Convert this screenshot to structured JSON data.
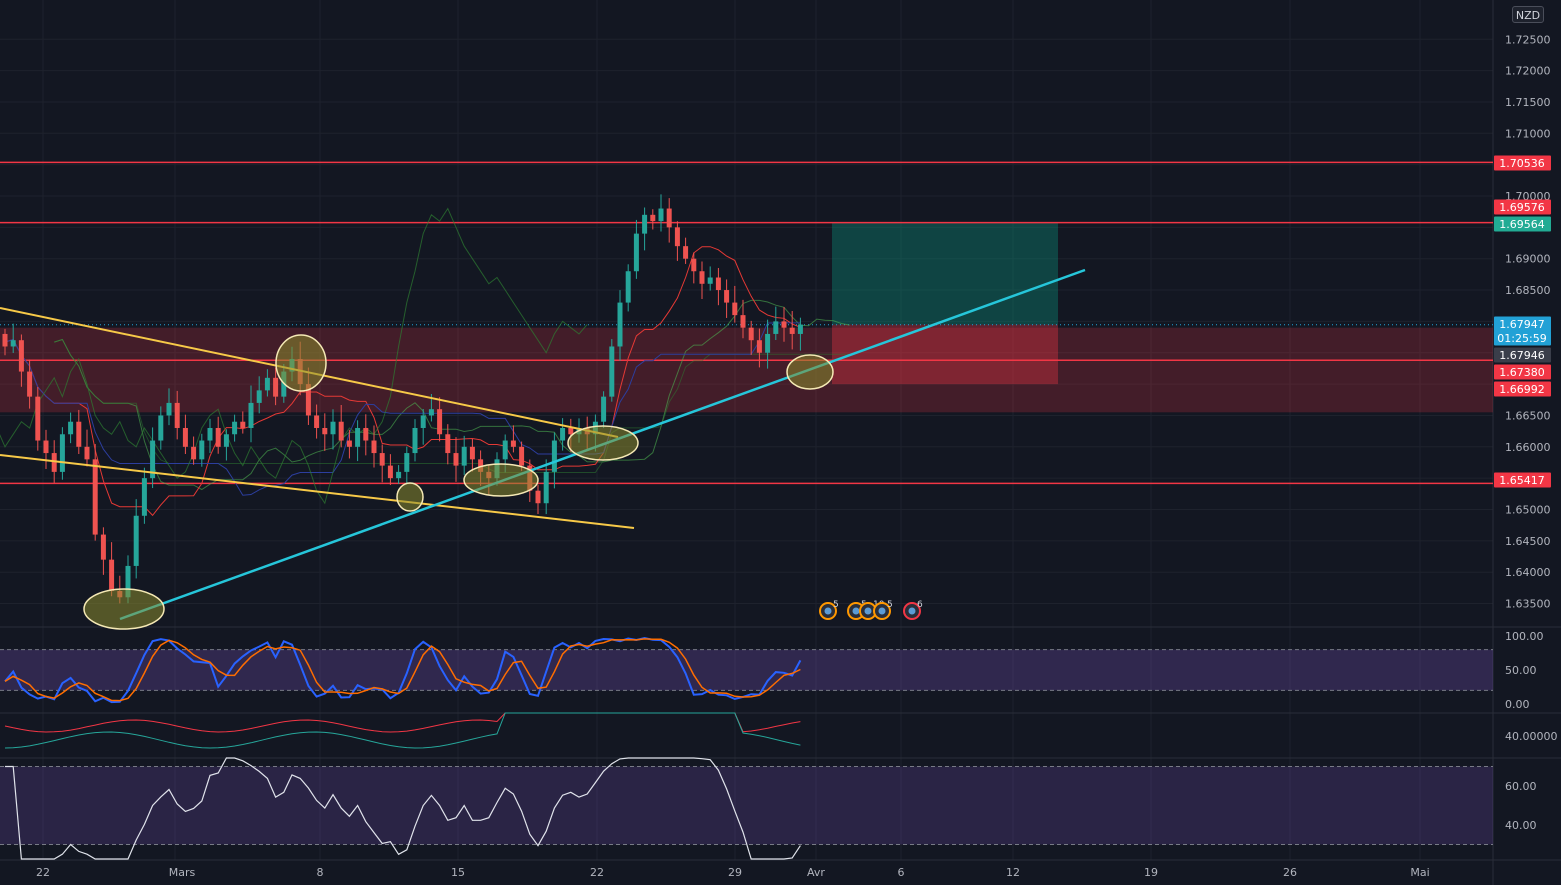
{
  "currency": "NZD",
  "price_axis": {
    "main_ticks": [
      "1.72500",
      "1.72000",
      "1.71500",
      "1.71000",
      "1.70000",
      "1.69000",
      "1.68500",
      "1.66500",
      "1.66000",
      "1.65000",
      "1.64500",
      "1.64000",
      "1.63500"
    ],
    "stoch_ticks": [
      "100.00",
      "50.00",
      "0.00"
    ],
    "pane2_ticks": [
      "40.00000"
    ],
    "rsi_ticks": [
      "60.00",
      "40.00"
    ]
  },
  "price_tags": [
    {
      "label": "1.70536",
      "color": "#f23645",
      "text_color": "#ffffff"
    },
    {
      "label": "1.69576",
      "color": "#f23645",
      "text_color": "#ffffff"
    },
    {
      "label": "1.69564",
      "color": "#22ab94",
      "text_color": "#ffffff"
    },
    {
      "label": "1.67947",
      "color": "#22a1d6",
      "text_color": "#ffffff"
    },
    {
      "label": "01:25:59",
      "color": "#22a1d6",
      "text_color": "#ffffff"
    },
    {
      "label": "1.67946",
      "color": "#3a3e4a",
      "text_color": "#ffffff"
    },
    {
      "label": "1.67380",
      "color": "#f23645",
      "text_color": "#ffffff"
    },
    {
      "label": "1.66992",
      "color": "#f23645",
      "text_color": "#ffffff"
    },
    {
      "label": "1.65417",
      "color": "#f23645",
      "text_color": "#ffffff"
    }
  ],
  "time_axis": [
    "22",
    "Mars",
    "8",
    "15",
    "22",
    "29",
    "Avr",
    "6",
    "12",
    "19",
    "26",
    "Mai"
  ],
  "event_badges": [
    "5",
    "5",
    "10",
    "5",
    "6"
  ],
  "chart_data": {
    "type": "candlestick",
    "symbol_currency": "NZD",
    "horizontal_levels": [
      1.70536,
      1.69576,
      1.6738,
      1.65417
    ],
    "current_price": 1.67947,
    "countdown": "01:25:59",
    "resistance_zone": [
      1.6655,
      1.679
    ],
    "long_position": {
      "entry": 1.6795,
      "target": 1.6958,
      "stop": 1.67
    },
    "closes": [
      1.676,
      1.677,
      1.672,
      1.668,
      1.661,
      1.659,
      1.656,
      1.662,
      1.664,
      1.66,
      1.658,
      1.646,
      1.642,
      1.637,
      1.636,
      1.641,
      1.649,
      1.655,
      1.661,
      1.665,
      1.667,
      1.663,
      1.66,
      1.658,
      1.661,
      1.663,
      1.66,
      1.662,
      1.664,
      1.663,
      1.667,
      1.669,
      1.671,
      1.668,
      1.672,
      1.674,
      1.67,
      1.665,
      1.663,
      1.662,
      1.664,
      1.661,
      1.66,
      1.663,
      1.661,
      1.659,
      1.657,
      1.655,
      1.656,
      1.659,
      1.663,
      1.665,
      1.666,
      1.662,
      1.659,
      1.657,
      1.66,
      1.658,
      1.656,
      1.655,
      1.658,
      1.661,
      1.66,
      1.657,
      1.653,
      1.651,
      1.656,
      1.661,
      1.663,
      1.662,
      1.663,
      1.662,
      1.664,
      1.668,
      1.676,
      1.683,
      1.688,
      1.694,
      1.697,
      1.696,
      1.698,
      1.695,
      1.692,
      1.69,
      1.688,
      1.686,
      1.687,
      1.685,
      1.683,
      1.681,
      1.679,
      1.677,
      1.675,
      1.678,
      1.68,
      1.679,
      1.678,
      1.6795
    ],
    "stochastic": {
      "ticks": [
        0,
        50,
        100
      ],
      "band": [
        20,
        80
      ]
    },
    "rsi": {
      "ticks": [
        40,
        60
      ]
    }
  }
}
